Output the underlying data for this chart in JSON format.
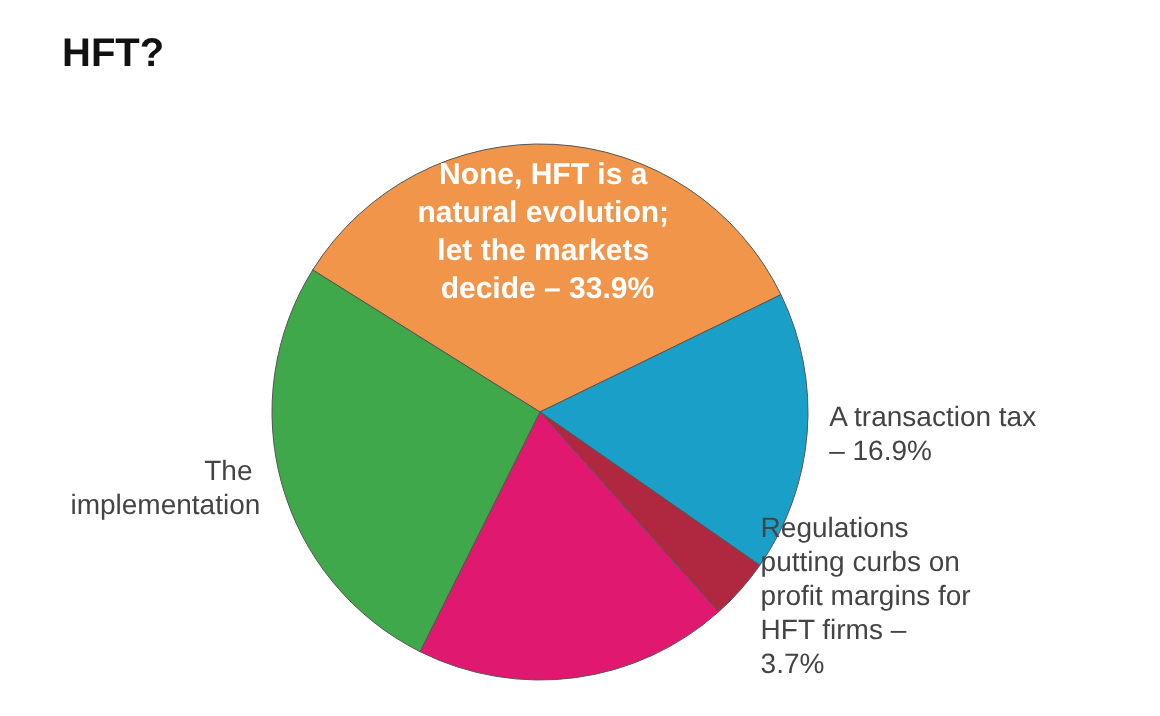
{
  "chart_data": {
    "type": "pie",
    "title": "HFT?",
    "categories": [
      "None, HFT is a natural evolution; let the markets decide –",
      "A transaction tax –",
      "Regulations putting curbs on profit margins for HFT firms –",
      null,
      "The implementation"
    ],
    "values": [
      33.9,
      16.9,
      3.7,
      19.0,
      26.5
    ],
    "colors": [
      "#f0954a",
      "#1aa0c8",
      "#b0283f",
      "#e0186f",
      "#3fa84a"
    ],
    "value_labels": [
      "33.9%",
      "16.9%",
      "3.7%",
      null,
      null
    ]
  }
}
